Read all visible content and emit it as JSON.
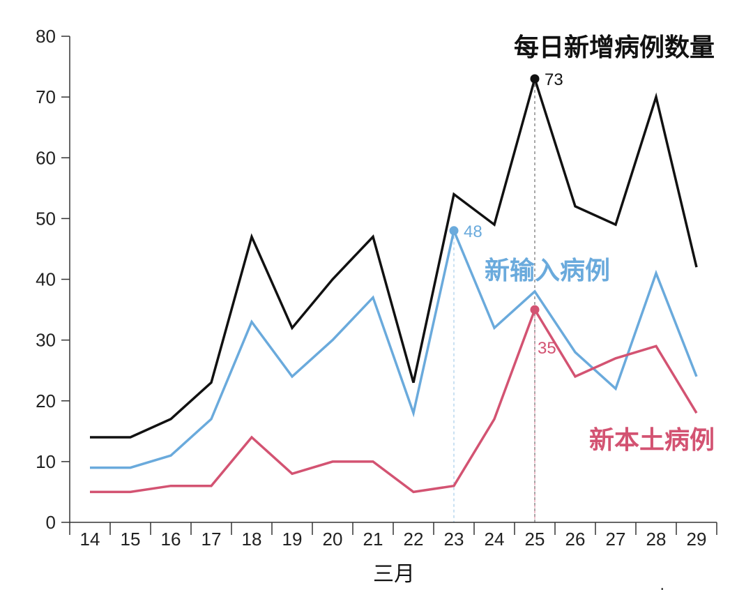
{
  "chart_data": {
    "type": "line",
    "title": "每日新增病例数量",
    "xlabel": "三月",
    "ylabel": "",
    "ylim": [
      0,
      80
    ],
    "yticks": [
      0,
      10,
      20,
      30,
      40,
      50,
      60,
      70,
      80
    ],
    "grid": false,
    "categories": [
      "14",
      "15",
      "16",
      "17",
      "18",
      "19",
      "20",
      "21",
      "22",
      "23",
      "24",
      "25",
      "26",
      "27",
      "28",
      "29"
    ],
    "series": [
      {
        "key": "total",
        "name": "",
        "color": "#111111",
        "values": [
          14,
          14,
          17,
          23,
          47,
          32,
          40,
          47,
          23,
          54,
          49,
          73,
          52,
          49,
          70,
          42
        ]
      },
      {
        "key": "imported",
        "name": "新输入病例",
        "color": "#6aaadc",
        "values": [
          9,
          9,
          11,
          17,
          33,
          24,
          30,
          37,
          18,
          48,
          32,
          38,
          28,
          22,
          41,
          24
        ]
      },
      {
        "key": "local",
        "name": "新本土病例",
        "color": "#d35372",
        "values": [
          5,
          5,
          6,
          6,
          14,
          8,
          10,
          10,
          5,
          6,
          17,
          35,
          24,
          27,
          29,
          18
        ]
      }
    ],
    "annotations": [
      {
        "series": "total",
        "category": "25",
        "value": 73,
        "text": "73",
        "color": "#111111"
      },
      {
        "series": "imported",
        "category": "23",
        "value": 48,
        "text": "48",
        "color": "#6aaadc"
      },
      {
        "series": "local",
        "category": "25",
        "value": 35,
        "text": "35",
        "color": "#d35372"
      }
    ],
    "source": "zaobao.sg"
  }
}
